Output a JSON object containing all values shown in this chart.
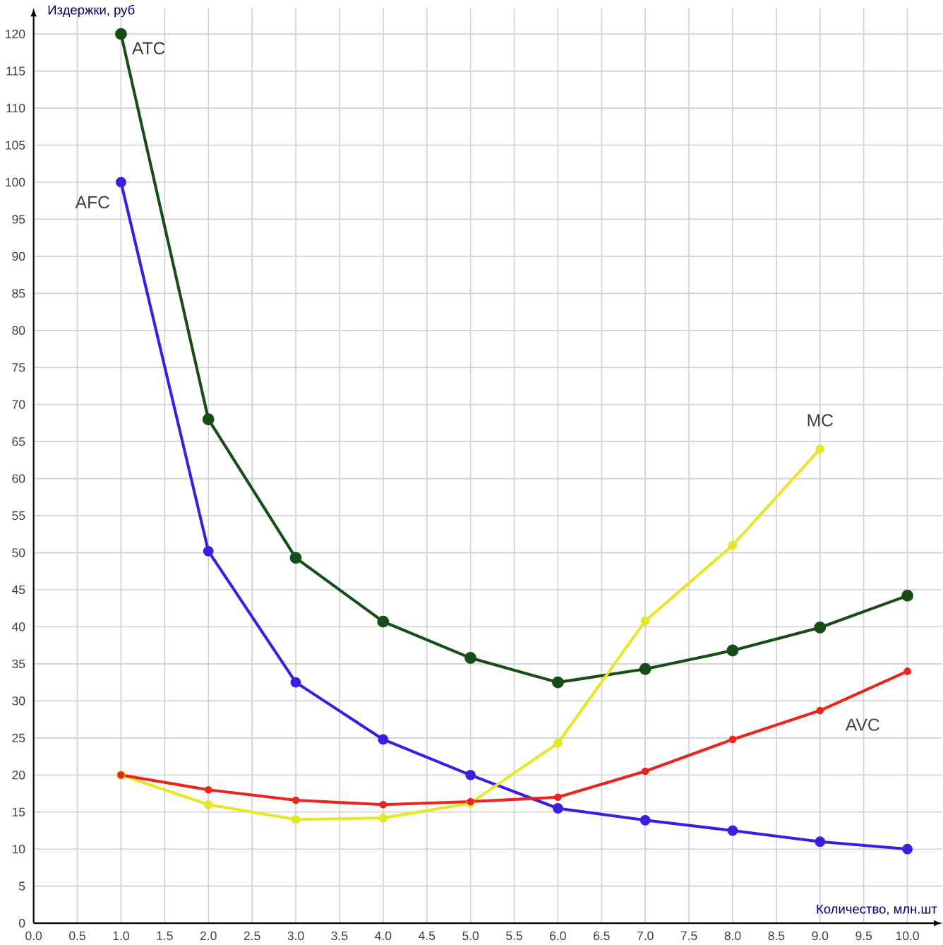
{
  "chart_data": {
    "type": "line",
    "xlabel": "Количество, млн.шт",
    "ylabel": "Издержки, руб",
    "x": [
      1,
      2,
      3,
      4,
      5,
      6,
      7,
      8,
      9,
      10
    ],
    "series": [
      {
        "name": "ATC",
        "color": "#174d17",
        "values": [
          120,
          68,
          49.3,
          40.7,
          35.8,
          32.5,
          34.3,
          36.8,
          39.9,
          44.2
        ]
      },
      {
        "name": "AFC",
        "color": "#3a1fe0",
        "values": [
          100,
          50.2,
          32.5,
          24.8,
          20,
          15.5,
          13.9,
          12.5,
          11,
          10
        ]
      },
      {
        "name": "MC",
        "color": "#e6e62a",
        "values": [
          20,
          16,
          14,
          14.2,
          16.2,
          24.3,
          40.8,
          51,
          64,
          null
        ]
      },
      {
        "name": "AVC",
        "color": "#e8261e",
        "values": [
          20,
          18,
          16.6,
          16,
          16.4,
          17,
          20.5,
          24.8,
          28.7,
          34
        ]
      }
    ],
    "xlim": [
      0,
      10.4
    ],
    "ylim": [
      0,
      123.5
    ],
    "xticks": [
      {
        "value": 0,
        "label": "0.0"
      },
      {
        "value": 0.5,
        "label": "0.5"
      },
      {
        "value": 1,
        "label": "1.0"
      },
      {
        "value": 1.5,
        "label": "1.5"
      },
      {
        "value": 2,
        "label": "2.0"
      },
      {
        "value": 2.5,
        "label": "2.5"
      },
      {
        "value": 3,
        "label": "3.0"
      },
      {
        "value": 3.5,
        "label": "3.5"
      },
      {
        "value": 4,
        "label": "4.0"
      },
      {
        "value": 4.5,
        "label": "4.5"
      },
      {
        "value": 5,
        "label": "5.0"
      },
      {
        "value": 5.5,
        "label": "5.5"
      },
      {
        "value": 6,
        "label": "6.0"
      },
      {
        "value": 6.5,
        "label": "6.5"
      },
      {
        "value": 7,
        "label": "7.0"
      },
      {
        "value": 7.5,
        "label": "7.5"
      },
      {
        "value": 8,
        "label": "8.0"
      },
      {
        "value": 8.5,
        "label": "8.5"
      },
      {
        "value": 9,
        "label": "9.0"
      },
      {
        "value": 9.5,
        "label": "9.5"
      },
      {
        "value": 10,
        "label": "10.0"
      }
    ],
    "yticks": [
      0,
      5,
      10,
      15,
      20,
      25,
      30,
      35,
      40,
      45,
      50,
      55,
      60,
      65,
      70,
      75,
      80,
      85,
      90,
      95,
      100,
      105,
      110,
      115,
      120
    ],
    "grid": true,
    "marker": "circle",
    "line_style": "solid"
  }
}
